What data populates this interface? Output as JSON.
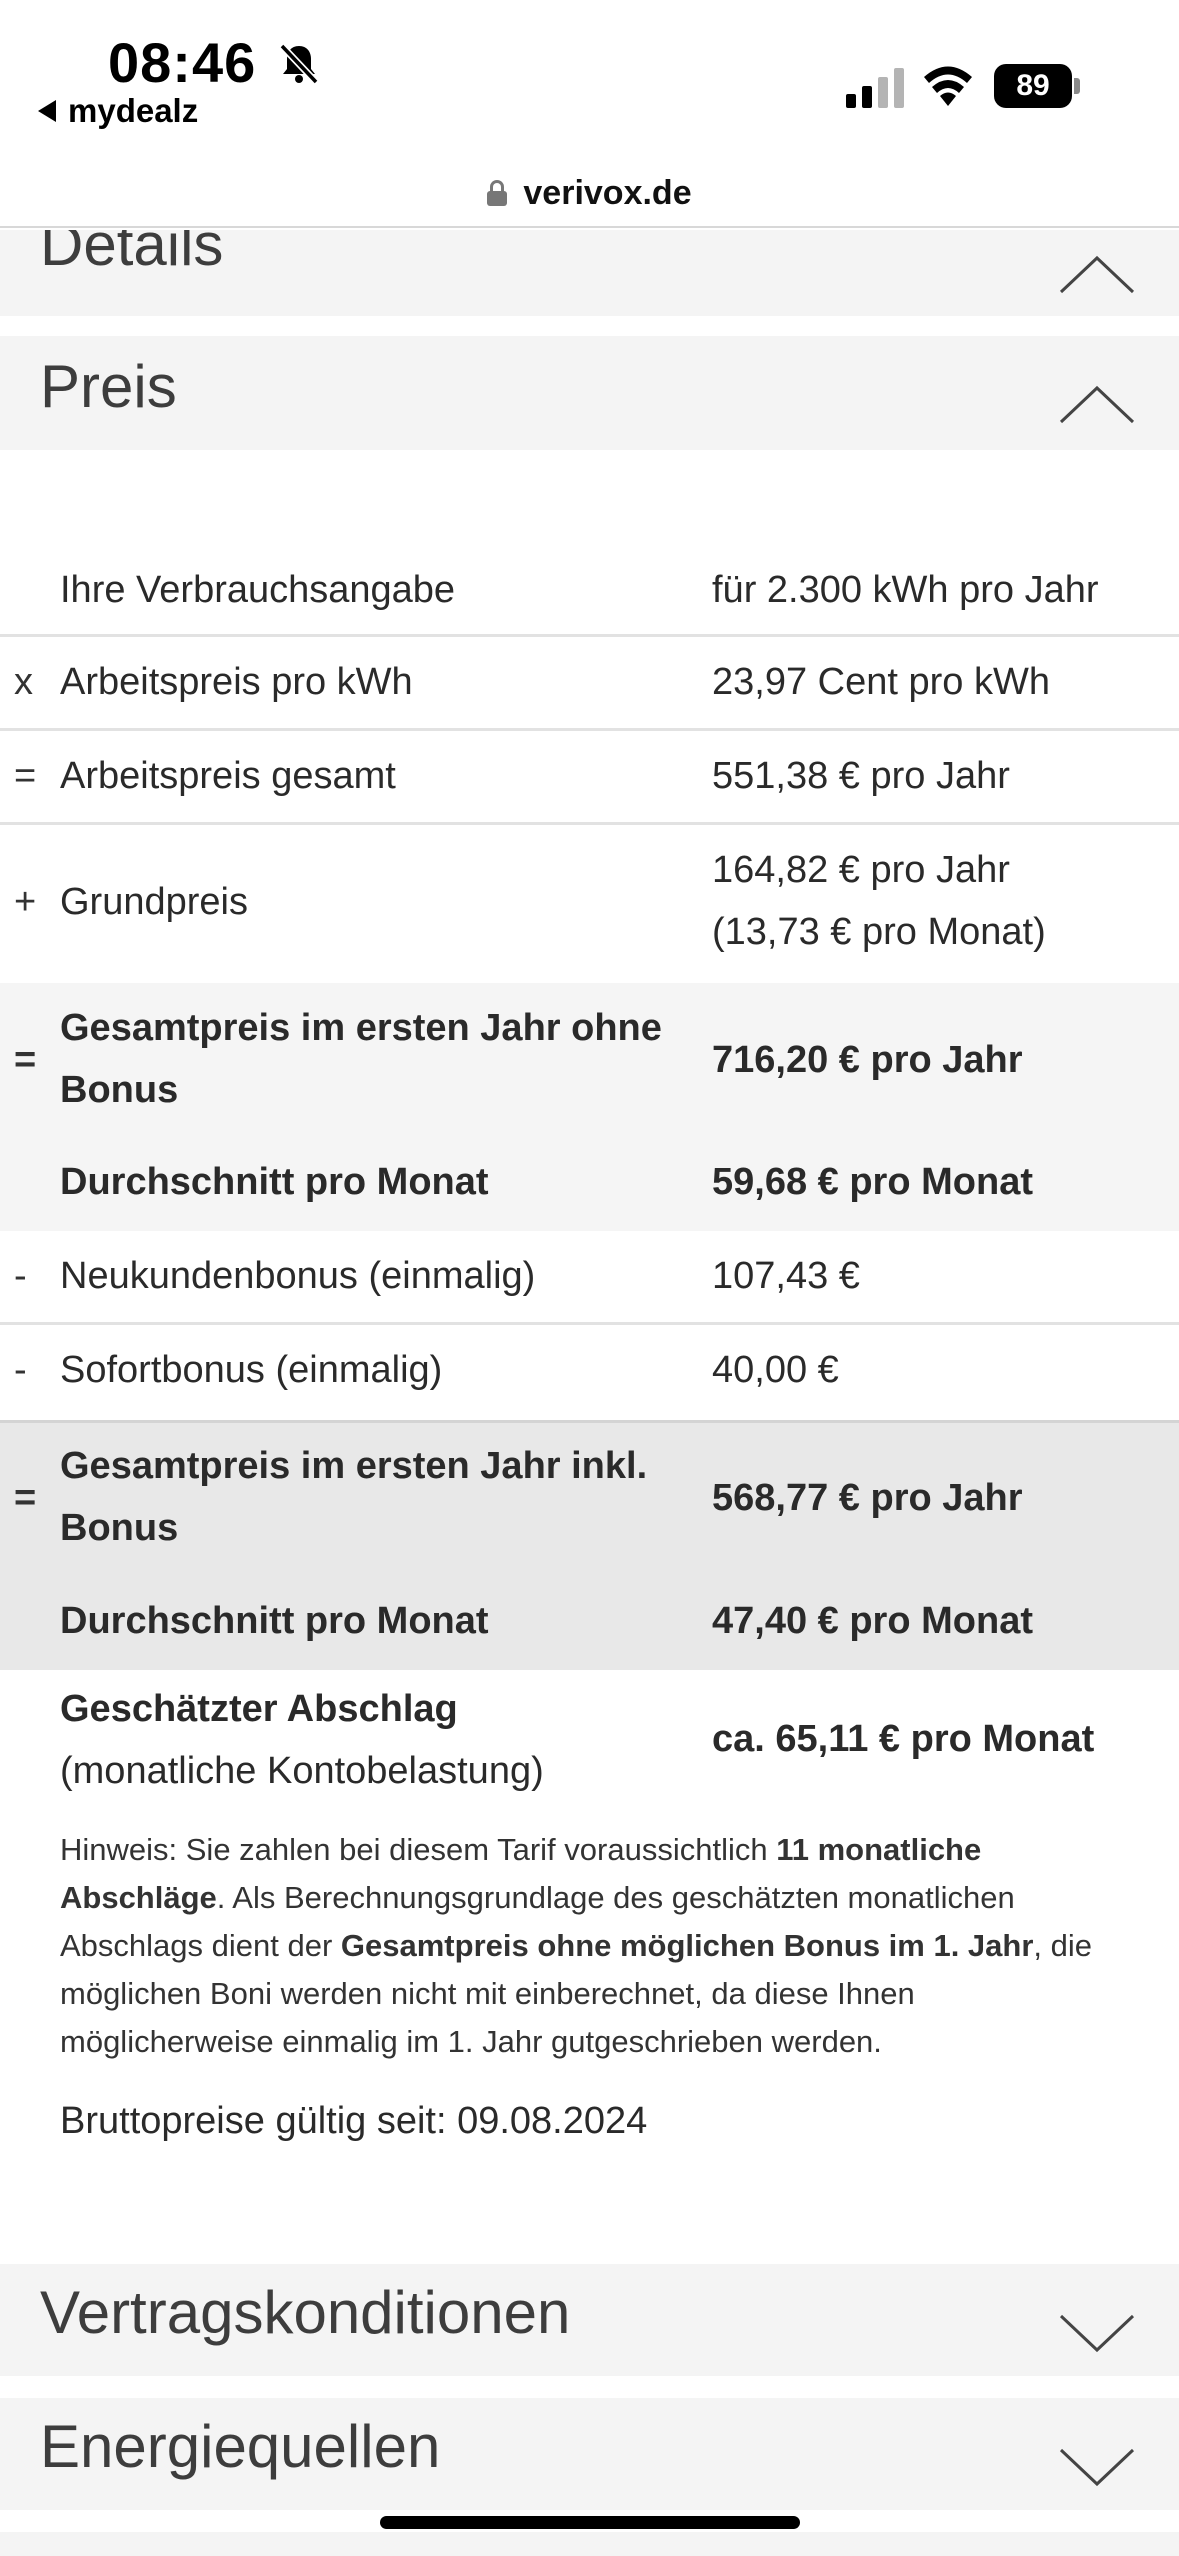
{
  "status": {
    "time": "08:46",
    "back_app": "mydealz",
    "battery": "89",
    "icons": [
      "bell-slash-icon",
      "signal-icon",
      "wifi-icon",
      "battery-icon"
    ]
  },
  "browser": {
    "domain": "verivox.de"
  },
  "sections": {
    "details": "Details",
    "preis": "Preis",
    "vertrag": "Vertragskonditionen",
    "energie": "Energiequellen"
  },
  "price_rows": [
    {
      "sign": "",
      "label": "Ihre Verbrauchsangabe",
      "value": "für 2.300 kWh pro Jahr"
    },
    {
      "sign": "x",
      "label": "Arbeitspreis pro kWh",
      "value": "23,97 Cent pro kWh"
    },
    {
      "sign": "=",
      "label": "Arbeitspreis gesamt",
      "value": "551,38 € pro Jahr"
    },
    {
      "sign": "+",
      "label": "Grundpreis",
      "value_line1": "164,82 € pro Jahr",
      "value_line2": "(13,73 € pro Monat)"
    },
    {
      "sign": "=",
      "label_line1": "Gesamtpreis im ersten Jahr ohne",
      "label_line2": "Bonus",
      "value": "716,20 € pro Jahr"
    },
    {
      "sign": "",
      "label": "Durchschnitt pro Monat",
      "value": "59,68 € pro Monat"
    },
    {
      "sign": "-",
      "label": "Neukundenbonus (einmalig)",
      "value": "107,43 €"
    },
    {
      "sign": "-",
      "label": "Sofortbonus (einmalig)",
      "value": "40,00 €"
    },
    {
      "sign": "=",
      "label_line1": "Gesamtpreis im ersten Jahr inkl.",
      "label_line2": "Bonus",
      "value": "568,77 € pro Jahr"
    },
    {
      "sign": "",
      "label": "Durchschnitt pro Monat",
      "value": "47,40 € pro Monat"
    },
    {
      "sign": "",
      "label_line1": "Geschätzter Abschlag",
      "label_line2": "(monatliche Kontobelastung)",
      "value": "ca. 65,11 € pro Monat"
    }
  ],
  "hint": {
    "p1": "Hinweis: Sie zahlen bei diesem Tarif voraussichtlich ",
    "b1": "11 monatliche Abschläge",
    "p2": ". Als Berechnungsgrundlage des geschätzten monatlichen Abschlags dient der ",
    "b2": "Gesamtpreis ohne möglichen Bonus im 1. Jahr",
    "p3": ", die möglichen Boni werden nicht mit einberechnet, da diese Ihnen möglicherweise einmalig im 1. Jahr gutgeschrieben werden."
  },
  "valid_since": "Bruttopreise gültig seit: 09.08.2024"
}
